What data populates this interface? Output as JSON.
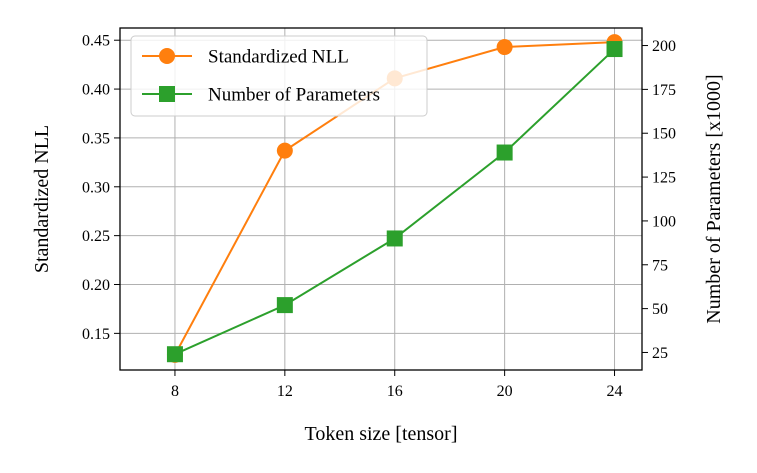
{
  "chart_data": {
    "type": "line",
    "x": [
      8,
      12,
      16,
      20,
      24
    ],
    "xlabel": "Token size [tensor]",
    "ylabel": "Standardized NLL",
    "y2label": "Number of Parameters [x1000]",
    "xlim": [
      6.0,
      25.0
    ],
    "ylim": [
      0.1125,
      0.4625
    ],
    "y2lim": [
      15,
      210
    ],
    "xticks": [
      "8",
      "12",
      "16",
      "20",
      "24"
    ],
    "yticks": [
      "0.15",
      "0.20",
      "0.25",
      "0.30",
      "0.35",
      "0.40",
      "0.45"
    ],
    "y2ticks": [
      "25",
      "50",
      "75",
      "100",
      "125",
      "150",
      "175",
      "200"
    ],
    "grid": true,
    "legend_position": "upper-left",
    "series": [
      {
        "name": "Standardized NLL",
        "axis": "left",
        "marker": "circle",
        "color": "#ff7f0e",
        "values": [
          0.128,
          0.337,
          0.411,
          0.443,
          0.448
        ]
      },
      {
        "name": "Number of Parameters",
        "axis": "right",
        "marker": "square",
        "color": "#2ca02c",
        "values": [
          24,
          52,
          90,
          139,
          198
        ]
      }
    ]
  }
}
